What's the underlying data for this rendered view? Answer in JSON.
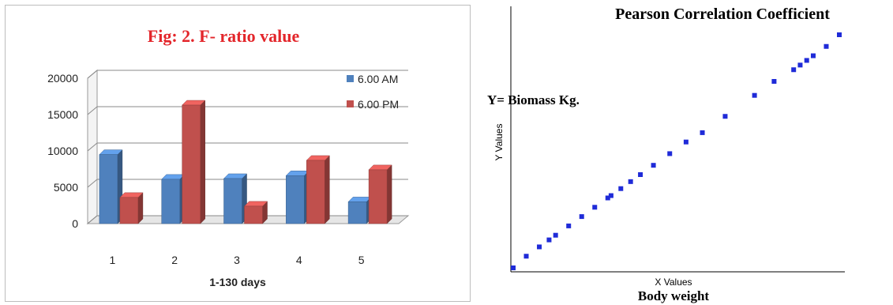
{
  "chart_data": [
    {
      "type": "bar",
      "title": "Fig: 2. F- ratio value",
      "xlabel": "1-130 days",
      "ylabel": "",
      "categories": [
        "1",
        "2",
        "3",
        "4",
        "5"
      ],
      "series": [
        {
          "name": "6.00 AM",
          "values": [
            9500,
            6100,
            6200,
            6600,
            3000
          ]
        },
        {
          "name": "6.00 PM",
          "values": [
            3600,
            16300,
            2400,
            8700,
            7400
          ]
        }
      ],
      "ylim": [
        0,
        20000
      ],
      "yticks": [
        "0",
        "5000",
        "10000",
        "15000",
        "20000"
      ],
      "grid": true,
      "legend": "top-right",
      "colors": {
        "6.00 AM": "#4f81bd",
        "6.00 PM": "#c0504d",
        "title": "#e3262b"
      }
    },
    {
      "type": "scatter",
      "title": "Pearson Correlation Coefficient",
      "xlabel": "X Values",
      "ylabel": "Y Values",
      "annotations": {
        "y_annotation": "Y= Biomass Kg.",
        "x_annotation": "Body weight"
      },
      "xlim": [
        0,
        1
      ],
      "ylim": [
        0,
        1
      ],
      "grid": false,
      "colors": {
        "points": "#1f2bd8"
      },
      "x": [
        0.0,
        0.04,
        0.08,
        0.11,
        0.13,
        0.17,
        0.21,
        0.25,
        0.29,
        0.3,
        0.33,
        0.36,
        0.39,
        0.43,
        0.48,
        0.53,
        0.58,
        0.65,
        0.74,
        0.8,
        0.86,
        0.88,
        0.9,
        0.92,
        0.96,
        1.0
      ],
      "y": [
        0.0,
        0.05,
        0.09,
        0.12,
        0.14,
        0.18,
        0.22,
        0.26,
        0.3,
        0.31,
        0.34,
        0.37,
        0.4,
        0.44,
        0.49,
        0.54,
        0.58,
        0.65,
        0.74,
        0.8,
        0.85,
        0.87,
        0.89,
        0.91,
        0.95,
        1.0
      ]
    }
  ]
}
